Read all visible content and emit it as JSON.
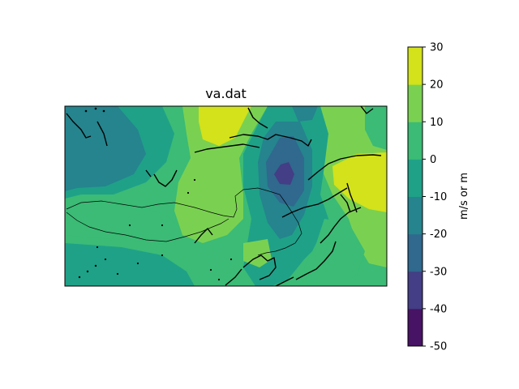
{
  "title": "va.dat",
  "colorbar": {
    "label": "m/s or m",
    "levels": [
      -50,
      -40,
      -30,
      -20,
      -10,
      0,
      10,
      20,
      30
    ],
    "colors": [
      "#471365",
      "#433e85",
      "#30688e",
      "#25848e",
      "#1fa188",
      "#3bbb75",
      "#7ad151",
      "#d3e21a"
    ]
  },
  "map": {
    "color_map": "viridis",
    "min_value": -40,
    "max_value": 30,
    "coastline_color": "#000000"
  }
}
